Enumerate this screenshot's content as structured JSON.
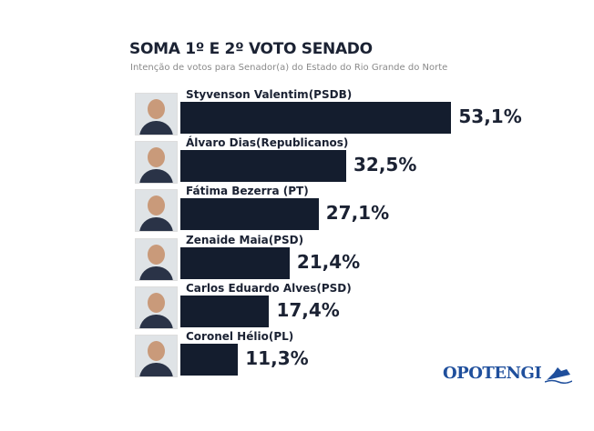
{
  "chart_data": {
    "type": "bar",
    "orientation": "horizontal",
    "title": "SOMA 1º E 2º VOTO SENADO",
    "subtitle": "Intenção de votos para Senador(a) do Estado do Rio Grande do Norte",
    "categories": [
      "Styvenson Valentim(PSDB)",
      "Álvaro Dias(Republicanos)",
      "Fátima Bezerra (PT)",
      "Zenaide Maia(PSD)",
      "Carlos Eduardo Alves(PSD)",
      "Coronel Hélio(PL)"
    ],
    "values": [
      53.1,
      32.5,
      27.1,
      21.4,
      17.4,
      11.3
    ],
    "labels": [
      "53,1%",
      "32,5%",
      "27,1%",
      "21,4%",
      "17,4%",
      "11,3%"
    ],
    "bar_color": "#141d2e",
    "grid": false,
    "legend": "none"
  },
  "brand": {
    "logo_text": "OPOTENGI",
    "color": "#1f4f9c"
  }
}
